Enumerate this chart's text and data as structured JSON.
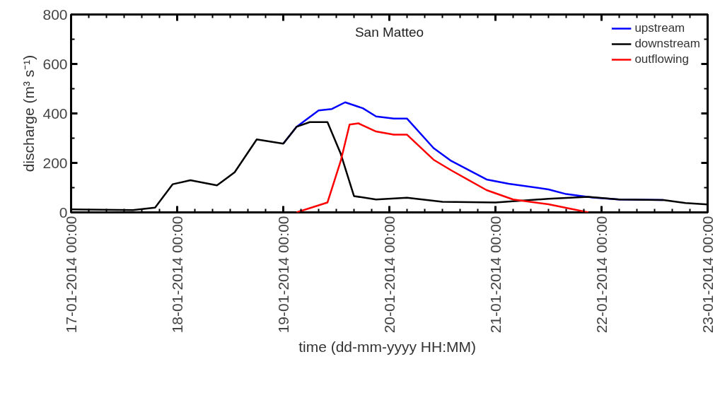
{
  "chart_data": {
    "type": "line",
    "title": "San Matteo",
    "xlabel": "time (dd-mm-yyyy  HH:MM)",
    "ylabel": "discharge (m³ s⁻¹)",
    "xlim": [
      "2014-01-17T00:00",
      "2014-01-23T00:00"
    ],
    "ylim": [
      0,
      800
    ],
    "yticks": [
      0,
      200,
      400,
      600,
      800
    ],
    "xticks": [
      {
        "value": "2014-01-17T00:00",
        "label": "17-01-2014 00:00"
      },
      {
        "value": "2014-01-18T00:00",
        "label": "18-01-2014 00:00"
      },
      {
        "value": "2014-01-19T00:00",
        "label": "19-01-2014 00:00"
      },
      {
        "value": "2014-01-20T00:00",
        "label": "20-01-2014 00:00"
      },
      {
        "value": "2014-01-21T00:00",
        "label": "21-01-2014 00:00"
      },
      {
        "value": "2014-01-22T00:00",
        "label": "22-01-2014 00:00"
      },
      {
        "value": "2014-01-23T00:00",
        "label": "23-01-2014 00:00"
      }
    ],
    "grid": false,
    "legend": "top right",
    "marker": "none",
    "line_style": "solid",
    "series": [
      {
        "name": "upstream",
        "color": "#0000ff",
        "x": [
          "2014-01-19T00:00",
          "2014-01-19T03:00",
          "2014-01-19T08:00",
          "2014-01-19T11:00",
          "2014-01-19T14:00",
          "2014-01-19T18:00",
          "2014-01-19T21:00",
          "2014-01-20T01:00",
          "2014-01-20T04:00",
          "2014-01-20T10:00",
          "2014-01-20T14:00",
          "2014-01-20T22:00",
          "2014-01-21T03:00",
          "2014-01-21T12:00",
          "2014-01-21T16:00",
          "2014-01-21T22:00",
          "2014-01-22T04:00",
          "2014-01-22T14:00"
        ],
        "values": [
          278,
          346,
          412,
          418,
          445,
          421,
          388,
          379,
          379,
          260,
          208,
          133,
          116,
          93,
          74,
          60,
          52,
          50
        ]
      },
      {
        "name": "downstream",
        "color": "#000000",
        "x": [
          "2014-01-17T00:00",
          "2014-01-17T14:00",
          "2014-01-17T19:00",
          "2014-01-17T23:00",
          "2014-01-18T03:00",
          "2014-01-18T09:00",
          "2014-01-18T13:00",
          "2014-01-18T18:00",
          "2014-01-19T00:00",
          "2014-01-19T03:00",
          "2014-01-19T06:00",
          "2014-01-19T10:00",
          "2014-01-19T13:00",
          "2014-01-19T16:00",
          "2014-01-19T21:00",
          "2014-01-20T04:00",
          "2014-01-20T12:00",
          "2014-01-21T00:00",
          "2014-01-21T12:00",
          "2014-01-21T21:00",
          "2014-01-22T04:00",
          "2014-01-22T14:00",
          "2014-01-22T19:00",
          "2014-01-23T00:00"
        ],
        "values": [
          12,
          9,
          19,
          114,
          130,
          109,
          162,
          295,
          278,
          346,
          365,
          365,
          237,
          66,
          52,
          59,
          43,
          40,
          55,
          63,
          52,
          50,
          38,
          32
        ]
      },
      {
        "name": "outflowing",
        "color": "#ff0000",
        "x": [
          "2014-01-19T03:00",
          "2014-01-19T10:00",
          "2014-01-19T13:00",
          "2014-01-19T15:00",
          "2014-01-19T17:00",
          "2014-01-19T21:00",
          "2014-01-20T01:00",
          "2014-01-20T04:00",
          "2014-01-20T10:00",
          "2014-01-20T14:00",
          "2014-01-20T22:00",
          "2014-01-21T04:00",
          "2014-01-21T12:00",
          "2014-01-21T21:00"
        ],
        "values": [
          0,
          40,
          208,
          355,
          360,
          327,
          314,
          314,
          213,
          170,
          90,
          52,
          33,
          0
        ]
      }
    ]
  }
}
